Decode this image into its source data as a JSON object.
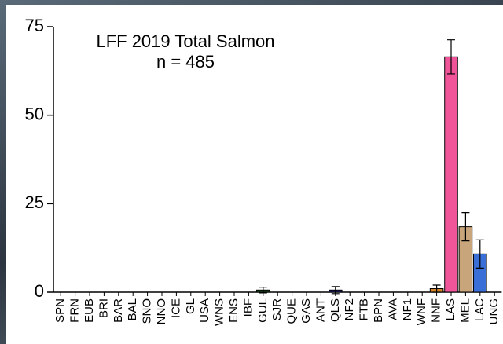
{
  "chart_data": {
    "type": "bar",
    "title": "LFF 2019 Total Salmon",
    "subtitle": "n = 485",
    "categories": [
      "SPN",
      "FRN",
      "EUB",
      "BRI",
      "BAR",
      "BAL",
      "SNO",
      "NNO",
      "ICE",
      "GL",
      "USA",
      "WNS",
      "ENS",
      "IBF",
      "GUL",
      "SJR",
      "QUE",
      "GAS",
      "ANT",
      "QLS",
      "NF2",
      "FTB",
      "BPN",
      "AVA",
      "NF1",
      "WNF",
      "NNF",
      "LAS",
      "MEL",
      "LAC",
      "UNG"
    ],
    "values": [
      0,
      0,
      0,
      0,
      0,
      0,
      0,
      0,
      0,
      0,
      0,
      0,
      0,
      0,
      0.6,
      0,
      0,
      0,
      0,
      0.6,
      0,
      0,
      0,
      0,
      0,
      0,
      1.0,
      66.5,
      18.5,
      10.8,
      0
    ],
    "errors": [
      null,
      null,
      null,
      null,
      null,
      null,
      null,
      null,
      null,
      null,
      null,
      null,
      null,
      null,
      0.8,
      null,
      null,
      null,
      null,
      1.0,
      null,
      null,
      null,
      null,
      null,
      null,
      1.0,
      4.8,
      4.0,
      4.0,
      null
    ],
    "colors": [
      null,
      null,
      null,
      null,
      null,
      null,
      null,
      null,
      null,
      null,
      null,
      null,
      null,
      null,
      "#1f5e1f",
      null,
      null,
      null,
      null,
      "#22228c",
      null,
      null,
      null,
      null,
      null,
      null,
      "#d4852a",
      "#f0559a",
      "#c8a57a",
      "#3a6fd8",
      null
    ],
    "ylim": [
      0,
      75
    ],
    "yticks": [
      0,
      25,
      50,
      75
    ],
    "grid": false
  }
}
